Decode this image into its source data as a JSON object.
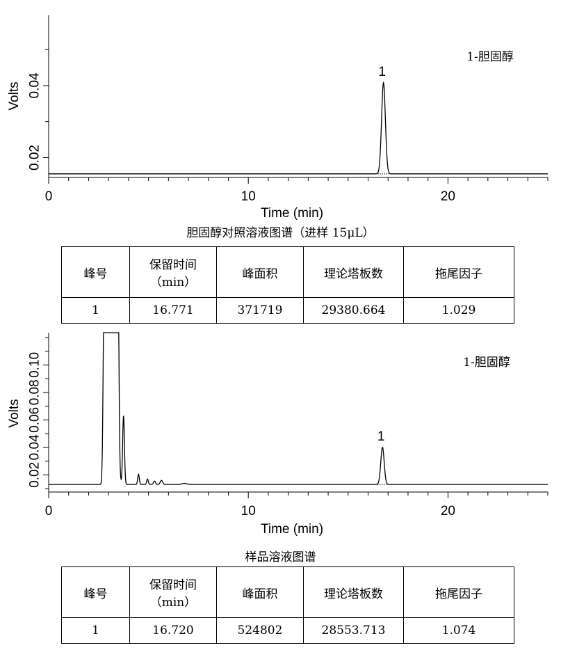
{
  "chart_data": [
    {
      "type": "line",
      "ylabel": "Volts",
      "xlabel": "Time (min)",
      "xlim": [
        0,
        25
      ],
      "ylim": [
        0.0145,
        0.0595
      ],
      "yticks": [
        0.02,
        0.04
      ],
      "ytick_labels": [
        "0.02",
        "0.04"
      ],
      "xticks": [
        0,
        10,
        20
      ],
      "xtick_labels": [
        "0",
        "10",
        "20"
      ],
      "baseline": 0.0155,
      "compound_label": "1-胆固醇",
      "peaks": [
        {
          "label": "1",
          "time": 16.77,
          "height": 0.0408,
          "width": 0.095
        }
      ],
      "caption": "胆固醇对照溶液图谱（进样 15μL）"
    },
    {
      "type": "line",
      "ylabel": "Volts",
      "xlabel": "Time (min)",
      "xlim": [
        0,
        25
      ],
      "ylim": [
        0.0075,
        0.1235
      ],
      "yticks": [
        0.02,
        0.04,
        0.06,
        0.08,
        0.1
      ],
      "ytick_labels": [
        "0.02",
        "0.04",
        "0.06",
        "0.08",
        "0.10"
      ],
      "xticks": [
        0,
        10,
        20
      ],
      "xtick_labels": [
        "0",
        "10",
        "20"
      ],
      "baseline": 0.013,
      "compound_label": "1-胆固醇",
      "peaks": [
        {
          "label": "1",
          "time": 16.72,
          "height": 0.04,
          "width": 0.085
        }
      ],
      "caption": "样品溶液图谱"
    }
  ],
  "tables": [
    {
      "headers": [
        "峰号",
        "保留时间",
        "峰面积",
        "理论塔板数",
        "拖尾因子"
      ],
      "header_sub": "（min）",
      "rows": [
        [
          "1",
          "16.771",
          "371719",
          "29380.664",
          "1.029"
        ]
      ]
    },
    {
      "headers": [
        "峰号",
        "保留时间",
        "峰面积",
        "理论塔板数",
        "拖尾因子"
      ],
      "header_sub": "（min）",
      "rows": [
        [
          "1",
          "16.720",
          "524802",
          "28553.713",
          "1.074"
        ]
      ]
    }
  ]
}
